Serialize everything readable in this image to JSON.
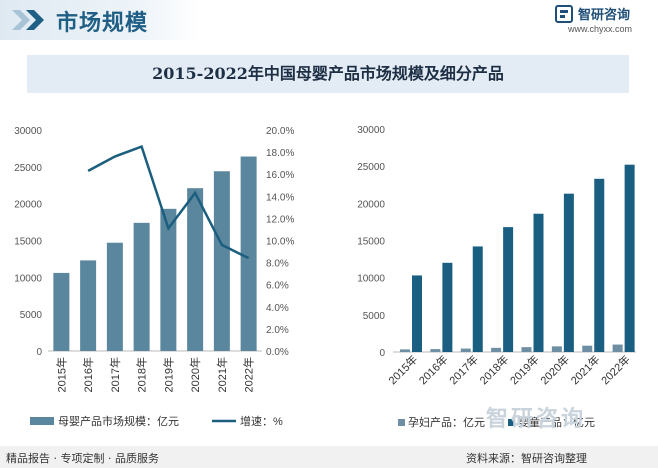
{
  "header": {
    "title": "市场规模",
    "brand_name": "智研咨询",
    "brand_url": "www.chyxx.com",
    "accent_color": "#1f5f86"
  },
  "chart_title": "2015-2022年中国母婴产品市场规模及细分产品",
  "chart_data": [
    {
      "type": "bar",
      "categories": [
        "2015年",
        "2016年",
        "2017年",
        "2018年",
        "2019年",
        "2020年",
        "2021年",
        "2022年"
      ],
      "series": [
        {
          "name": "母婴产品市场规模：亿元",
          "type": "bar",
          "axis": "left",
          "color": "#5b879e",
          "values": [
            10600,
            12300,
            14700,
            17400,
            19300,
            22100,
            24400,
            26400
          ]
        },
        {
          "name": "增速：%",
          "type": "line",
          "axis": "right",
          "color": "#1b5e7e",
          "values": [
            null,
            16.3,
            17.6,
            18.5,
            11.1,
            14.3,
            9.6,
            8.4
          ]
        }
      ],
      "ylim": [
        0,
        30000
      ],
      "yticks": [
        "0",
        "5000",
        "10000",
        "15000",
        "20000",
        "25000",
        "30000"
      ],
      "y2lim": [
        0,
        20
      ],
      "y2ticks": [
        "0.0%",
        "2.0%",
        "4.0%",
        "6.0%",
        "8.0%",
        "10.0%",
        "12.0%",
        "14.0%",
        "16.0%",
        "18.0%",
        "20.0%"
      ],
      "legend_position": "bottom"
    },
    {
      "type": "bar",
      "categories": [
        "2015年",
        "2016年",
        "2017年",
        "2018年",
        "2019年",
        "2020年",
        "2021年",
        "2022年"
      ],
      "series": [
        {
          "name": "孕妇产品：亿元",
          "color": "#6e8fa3",
          "values": [
            350,
            390,
            460,
            560,
            650,
            760,
            850,
            1000
          ]
        },
        {
          "name": "婴童产品：亿元",
          "color": "#1a5f82",
          "values": [
            10300,
            12000,
            14200,
            16800,
            18600,
            21300,
            23300,
            25200
          ]
        }
      ],
      "ylim": [
        0,
        30000
      ],
      "yticks": [
        "0",
        "5000",
        "10000",
        "15000",
        "20000",
        "25000",
        "30000"
      ],
      "legend_position": "bottom"
    }
  ],
  "footer": {
    "left_text": "精品报告 · 专项定制 · 品质服务",
    "source_text": "资料来源：智研咨询整理",
    "watermark": "智研咨询"
  }
}
